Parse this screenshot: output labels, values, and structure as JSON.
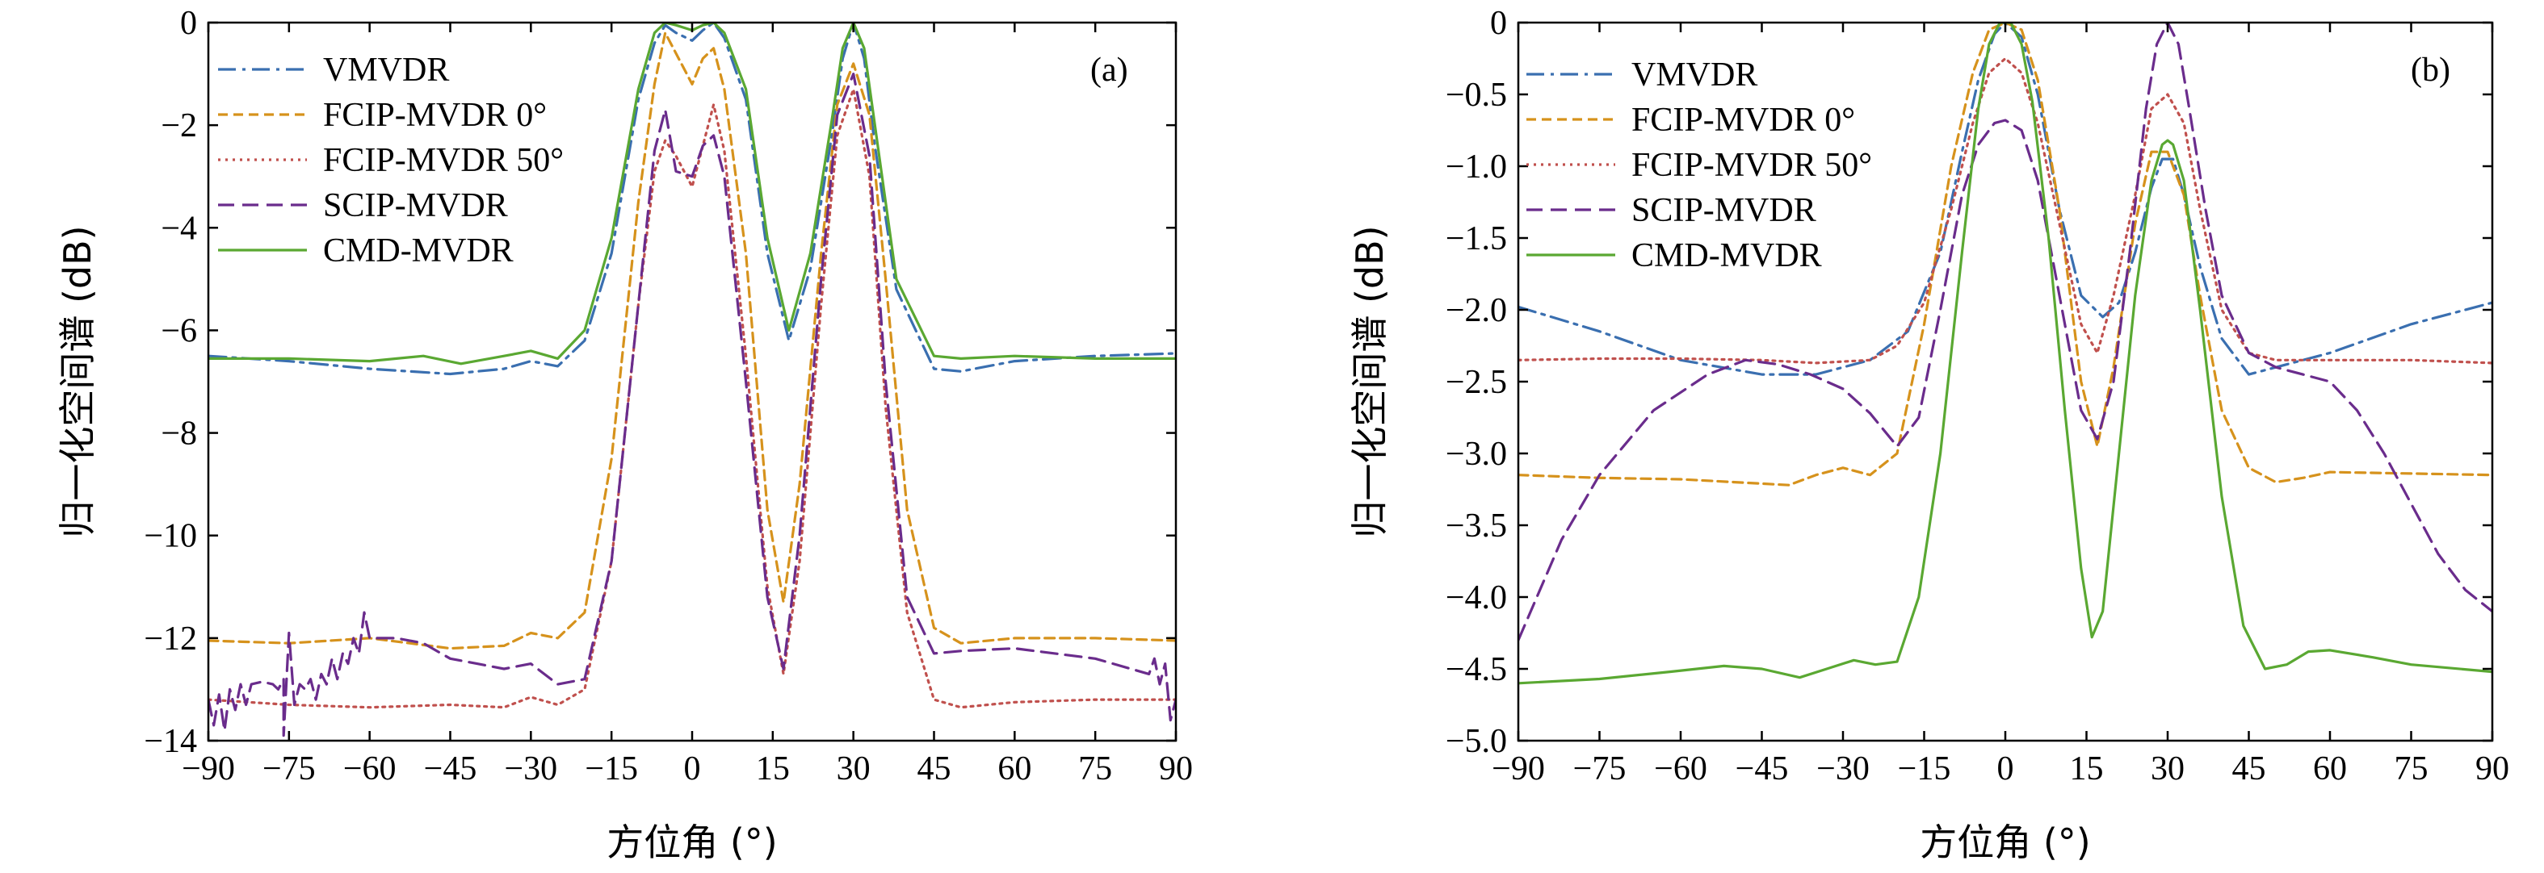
{
  "colors": {
    "VMVDR": "#3a6fb0",
    "FCIP0": "#d6921c",
    "FCIP50": "#c0504d",
    "SCIP": "#6a2c8c",
    "CMD": "#5aa832"
  },
  "chart_data": [
    {
      "type": "line",
      "panel_label": "(a)",
      "xlabel": "方位角 (°)",
      "ylabel": "归一化空间谱 (dB)",
      "xlim": [
        -90,
        90
      ],
      "ylim": [
        -14,
        0
      ],
      "xticks": [
        -90,
        -75,
        -60,
        -45,
        -30,
        -15,
        0,
        15,
        30,
        45,
        60,
        75,
        90
      ],
      "yticks": [
        0,
        -2,
        -4,
        -6,
        -8,
        -10,
        -12,
        -14
      ],
      "xtick_labels": [
        "−90",
        "−75",
        "−60",
        "−45",
        "−30",
        "−15",
        "0",
        "15",
        "30",
        "45",
        "60",
        "75",
        "90"
      ],
      "ytick_labels": [
        "0",
        "−2",
        "−4",
        "−6",
        "−8",
        "−10",
        "−12",
        "−14"
      ],
      "legend_position": "top-left",
      "series": [
        {
          "name": "VMVDR",
          "style": "dashdot",
          "color_key": "VMVDR",
          "x": [
            -90,
            -75,
            -60,
            -45,
            -35,
            -30,
            -25,
            -20,
            -15,
            -10,
            -7,
            -5,
            -3,
            0,
            2,
            4,
            6,
            10,
            14,
            18,
            22,
            26,
            28,
            30,
            32,
            34,
            38,
            45,
            50,
            60,
            75,
            90
          ],
          "y": [
            -6.5,
            -6.6,
            -6.75,
            -6.85,
            -6.75,
            -6.6,
            -6.7,
            -6.2,
            -4.5,
            -1.5,
            -0.4,
            -0.05,
            -0.2,
            -0.35,
            -0.15,
            0,
            -0.3,
            -1.5,
            -4.5,
            -6.2,
            -4.8,
            -2.2,
            -0.7,
            0,
            -0.7,
            -2.4,
            -5.2,
            -6.75,
            -6.8,
            -6.6,
            -6.5,
            -6.45
          ]
        },
        {
          "name": "FCIP-MVDR 0°",
          "style": "dashed",
          "color_key": "FCIP0",
          "x": [
            -90,
            -75,
            -60,
            -45,
            -35,
            -30,
            -25,
            -20,
            -15,
            -10,
            -7,
            -5,
            -3,
            0,
            2,
            4,
            6,
            10,
            14,
            17,
            20,
            24,
            27,
            30,
            33,
            36,
            40,
            45,
            50,
            60,
            75,
            90
          ],
          "y": [
            -12.05,
            -12.1,
            -12.0,
            -12.2,
            -12.15,
            -11.9,
            -12.0,
            -11.5,
            -8.5,
            -3.5,
            -1.2,
            -0.2,
            -0.6,
            -1.2,
            -0.7,
            -0.5,
            -1.3,
            -4.5,
            -9.5,
            -11.3,
            -9.0,
            -4.5,
            -1.6,
            -0.8,
            -1.8,
            -5.0,
            -9.5,
            -11.8,
            -12.1,
            -12.0,
            -12.0,
            -12.05
          ]
        },
        {
          "name": "FCIP-MVDR 50°",
          "style": "dotted",
          "color_key": "FCIP50",
          "x": [
            -90,
            -75,
            -60,
            -45,
            -35,
            -30,
            -25,
            -20,
            -15,
            -10,
            -7,
            -5,
            -3,
            0,
            2,
            4,
            6,
            10,
            14,
            17,
            20,
            24,
            27,
            30,
            33,
            36,
            40,
            45,
            50,
            60,
            75,
            90
          ],
          "y": [
            -13.2,
            -13.3,
            -13.35,
            -13.3,
            -13.35,
            -13.15,
            -13.3,
            -13.0,
            -10.5,
            -5.5,
            -2.9,
            -2.3,
            -2.6,
            -3.2,
            -2.4,
            -1.6,
            -2.5,
            -6.5,
            -11.0,
            -12.7,
            -10.5,
            -5.5,
            -2.2,
            -1.3,
            -3.0,
            -7.5,
            -11.5,
            -13.2,
            -13.35,
            -13.25,
            -13.2,
            -13.2
          ]
        },
        {
          "name": "SCIP-MVDR",
          "style": "longdash",
          "color_key": "SCIP",
          "x": [
            -90,
            -89,
            -88,
            -87,
            -86,
            -85,
            -84,
            -83,
            -82,
            -80,
            -78,
            -77,
            -76,
            -76,
            -75,
            -74,
            -73,
            -72,
            -71,
            -70,
            -69,
            -68,
            -67,
            -66,
            -65,
            -64,
            -63,
            -62,
            -61,
            -60,
            -55,
            -50,
            -45,
            -40,
            -35,
            -30,
            -25,
            -20,
            -15,
            -10,
            -7,
            -5,
            -3,
            0,
            2,
            4,
            6,
            10,
            14,
            17,
            20,
            24,
            27,
            30,
            33,
            36,
            40,
            45,
            50,
            60,
            75,
            85,
            86,
            87,
            88,
            89,
            90
          ],
          "y": [
            -13.2,
            -13.7,
            -13.1,
            -13.8,
            -13.0,
            -13.4,
            -12.9,
            -13.3,
            -12.9,
            -12.85,
            -12.9,
            -13.0,
            -12.8,
            -13.9,
            -11.9,
            -13.3,
            -12.9,
            -13.0,
            -12.8,
            -13.2,
            -12.7,
            -12.9,
            -12.4,
            -12.8,
            -12.3,
            -12.5,
            -12.0,
            -12.3,
            -11.5,
            -12.0,
            -12.0,
            -12.1,
            -12.4,
            -12.5,
            -12.6,
            -12.5,
            -12.9,
            -12.8,
            -10.5,
            -5.5,
            -2.5,
            -1.7,
            -2.9,
            -3.0,
            -2.4,
            -2.2,
            -3.0,
            -7.0,
            -11.2,
            -12.6,
            -10.0,
            -5.0,
            -1.8,
            -1.0,
            -2.6,
            -7.0,
            -11.2,
            -12.3,
            -12.25,
            -12.2,
            -12.4,
            -12.7,
            -12.4,
            -12.9,
            -12.5,
            -13.6,
            -13.2
          ]
        },
        {
          "name": "CMD-MVDR",
          "style": "solid",
          "color_key": "CMD",
          "x": [
            -90,
            -75,
            -60,
            -50,
            -43,
            -35,
            -30,
            -25,
            -20,
            -15,
            -10,
            -7,
            -5,
            -3,
            0,
            2,
            4,
            6,
            10,
            14,
            18,
            22,
            26,
            28,
            30,
            32,
            34,
            38,
            45,
            50,
            60,
            75,
            90
          ],
          "y": [
            -6.55,
            -6.55,
            -6.6,
            -6.5,
            -6.65,
            -6.5,
            -6.4,
            -6.55,
            -6.0,
            -4.2,
            -1.3,
            -0.2,
            0,
            -0.05,
            -0.15,
            -0.05,
            0,
            -0.2,
            -1.3,
            -4.2,
            -6.0,
            -4.5,
            -1.9,
            -0.5,
            0,
            -0.5,
            -2.0,
            -5.0,
            -6.5,
            -6.55,
            -6.5,
            -6.55,
            -6.55
          ]
        }
      ]
    },
    {
      "type": "line",
      "panel_label": "(b)",
      "xlabel": "方位角 (°)",
      "ylabel": "归一化空间谱 (dB)",
      "xlim": [
        -90,
        90
      ],
      "ylim": [
        -5.0,
        0
      ],
      "xticks": [
        -90,
        -75,
        -60,
        -45,
        -30,
        -15,
        0,
        15,
        30,
        45,
        60,
        75,
        90
      ],
      "yticks": [
        0,
        -0.5,
        -1.0,
        -1.5,
        -2.0,
        -2.5,
        -3.0,
        -3.5,
        -4.0,
        -4.5,
        -5.0
      ],
      "xtick_labels": [
        "−90",
        "−75",
        "−60",
        "−45",
        "−30",
        "−15",
        "0",
        "15",
        "30",
        "45",
        "60",
        "75",
        "90"
      ],
      "ytick_labels": [
        "0",
        "−0.5",
        "−1.0",
        "−1.5",
        "−2.0",
        "−2.5",
        "−3.0",
        "−3.5",
        "−4.0",
        "−4.5",
        "−5.0"
      ],
      "legend_position": "top-left",
      "series": [
        {
          "name": "VMVDR",
          "style": "dashdot",
          "color_key": "VMVDR",
          "x": [
            -90,
            -75,
            -60,
            -45,
            -35,
            -25,
            -18,
            -12,
            -8,
            -5,
            -2,
            0,
            3,
            6,
            10,
            14,
            18,
            21,
            24,
            27,
            29,
            31,
            33,
            36,
            40,
            45,
            50,
            60,
            75,
            90
          ],
          "y": [
            -1.98,
            -2.15,
            -2.35,
            -2.45,
            -2.45,
            -2.35,
            -2.15,
            -1.6,
            -0.9,
            -0.4,
            -0.08,
            0,
            -0.1,
            -0.5,
            -1.3,
            -1.9,
            -2.05,
            -1.95,
            -1.6,
            -1.15,
            -0.95,
            -0.95,
            -1.2,
            -1.7,
            -2.2,
            -2.45,
            -2.4,
            -2.3,
            -2.1,
            -1.95
          ]
        },
        {
          "name": "FCIP-MVDR 0°",
          "style": "dashed",
          "color_key": "FCIP0",
          "x": [
            -90,
            -75,
            -60,
            -50,
            -40,
            -35,
            -30,
            -25,
            -20,
            -15,
            -10,
            -6,
            -3,
            0,
            3,
            6,
            10,
            14,
            17,
            20,
            24,
            27,
            30,
            33,
            36,
            40,
            45,
            50,
            55,
            60,
            75,
            90
          ],
          "y": [
            -3.15,
            -3.17,
            -3.18,
            -3.2,
            -3.22,
            -3.15,
            -3.1,
            -3.15,
            -3.0,
            -2.1,
            -1.0,
            -0.35,
            -0.05,
            0,
            -0.05,
            -0.4,
            -1.3,
            -2.5,
            -2.95,
            -2.4,
            -1.4,
            -0.9,
            -0.9,
            -1.2,
            -1.9,
            -2.7,
            -3.1,
            -3.2,
            -3.17,
            -3.13,
            -3.14,
            -3.15
          ]
        },
        {
          "name": "FCIP-MVDR 50°",
          "style": "dotted",
          "color_key": "FCIP50",
          "x": [
            -90,
            -75,
            -60,
            -45,
            -35,
            -25,
            -20,
            -15,
            -10,
            -6,
            -3,
            0,
            3,
            6,
            10,
            14,
            17,
            20,
            24,
            27,
            30,
            33,
            36,
            40,
            45,
            50,
            60,
            75,
            90
          ],
          "y": [
            -2.35,
            -2.34,
            -2.34,
            -2.35,
            -2.37,
            -2.35,
            -2.25,
            -1.95,
            -1.3,
            -0.7,
            -0.35,
            -0.25,
            -0.35,
            -0.7,
            -1.4,
            -2.1,
            -2.3,
            -1.9,
            -1.2,
            -0.6,
            -0.5,
            -0.7,
            -1.3,
            -2.0,
            -2.3,
            -2.35,
            -2.35,
            -2.35,
            -2.37
          ]
        },
        {
          "name": "SCIP-MVDR",
          "style": "longdash",
          "color_key": "SCIP",
          "x": [
            -90,
            -82,
            -75,
            -65,
            -55,
            -48,
            -42,
            -36,
            -30,
            -25,
            -20,
            -16,
            -12,
            -8,
            -5,
            -2,
            0,
            3,
            6,
            10,
            14,
            17,
            20,
            23,
            26,
            28,
            30,
            32,
            34,
            37,
            40,
            45,
            50,
            55,
            60,
            65,
            70,
            75,
            80,
            85,
            90
          ],
          "y": [
            -4.3,
            -3.6,
            -3.15,
            -2.7,
            -2.45,
            -2.35,
            -2.38,
            -2.45,
            -2.55,
            -2.72,
            -2.95,
            -2.75,
            -2.0,
            -1.2,
            -0.85,
            -0.7,
            -0.68,
            -0.75,
            -1.1,
            -1.9,
            -2.7,
            -2.9,
            -2.5,
            -1.6,
            -0.6,
            -0.15,
            0,
            -0.15,
            -0.6,
            -1.3,
            -1.9,
            -2.3,
            -2.4,
            -2.45,
            -2.5,
            -2.7,
            -3.0,
            -3.35,
            -3.7,
            -3.95,
            -4.1
          ]
        },
        {
          "name": "CMD-MVDR",
          "style": "solid",
          "color_key": "CMD",
          "x": [
            -90,
            -75,
            -62,
            -52,
            -45,
            -38,
            -33,
            -28,
            -24,
            -20,
            -16,
            -12,
            -8,
            -5,
            -3,
            -1,
            0,
            1,
            3,
            5,
            8,
            11,
            14,
            16,
            18,
            21,
            24,
            27,
            29,
            30,
            31,
            33,
            36,
            40,
            44,
            48,
            52,
            56,
            60,
            68,
            75,
            90
          ],
          "y": [
            -4.6,
            -4.57,
            -4.52,
            -4.48,
            -4.5,
            -4.56,
            -4.5,
            -4.44,
            -4.47,
            -4.45,
            -4.0,
            -3.0,
            -1.6,
            -0.6,
            -0.15,
            0,
            0,
            0,
            -0.15,
            -0.55,
            -1.5,
            -2.7,
            -3.8,
            -4.28,
            -4.1,
            -3.0,
            -1.9,
            -1.1,
            -0.85,
            -0.82,
            -0.85,
            -1.1,
            -2.0,
            -3.3,
            -4.2,
            -4.5,
            -4.47,
            -4.38,
            -4.37,
            -4.42,
            -4.47,
            -4.52
          ]
        }
      ]
    }
  ]
}
